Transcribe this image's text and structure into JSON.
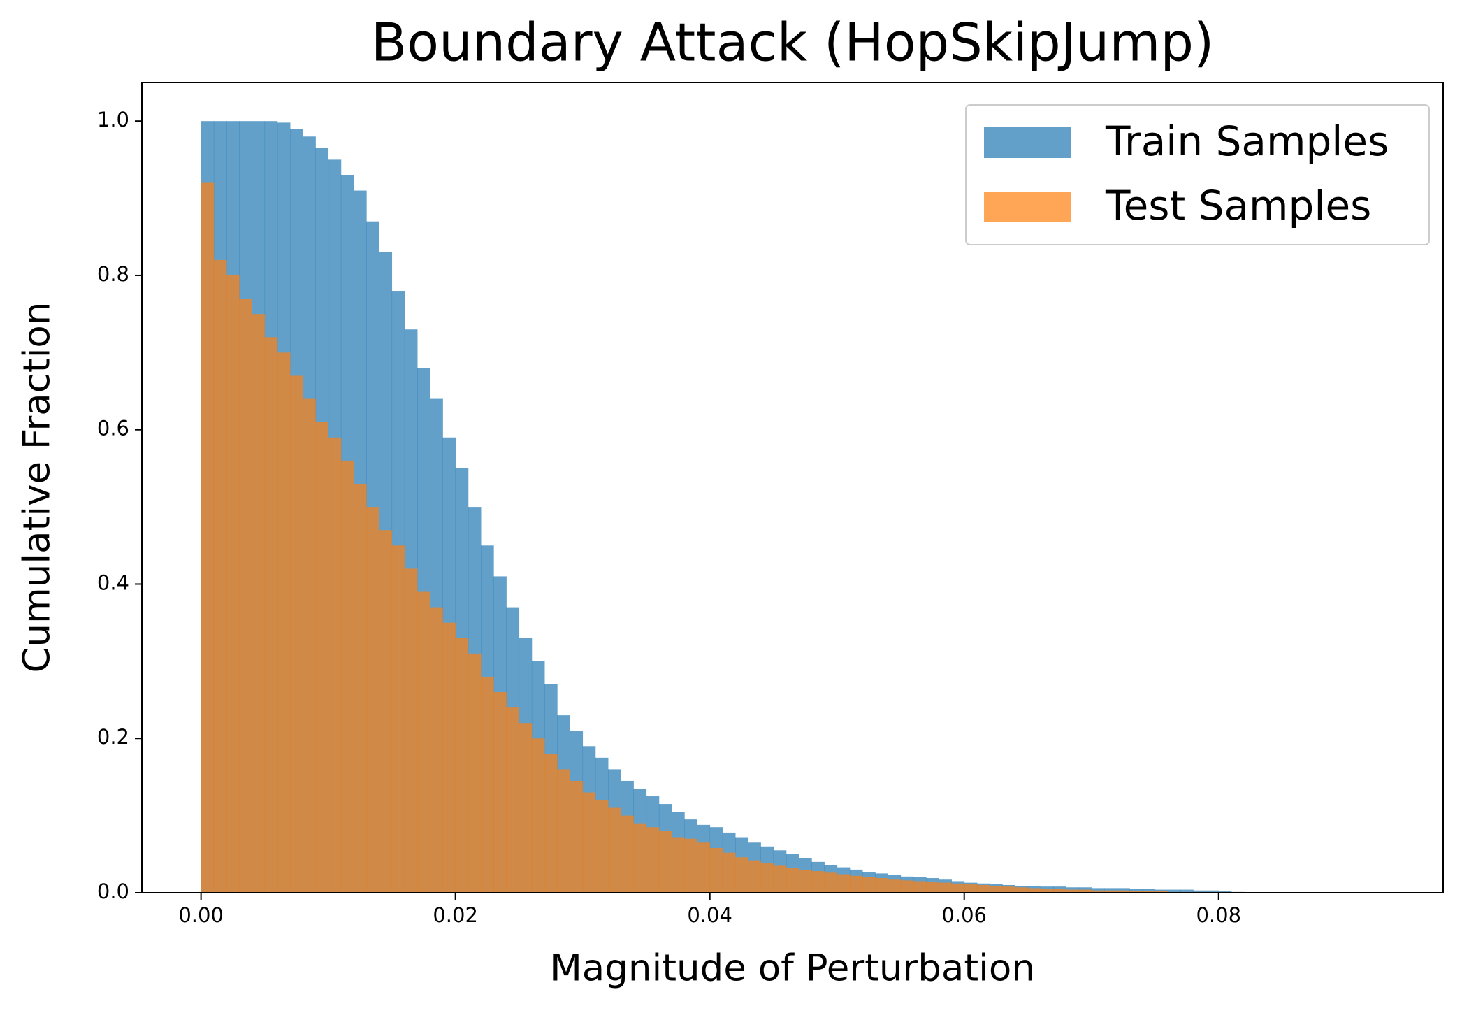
{
  "chart_data": {
    "type": "histogram",
    "title": "Boundary Attack (HopSkipJump)",
    "x_label": "Magnitude of Perturbation",
    "y_label": "Cumulative Fraction",
    "bins": [
      0,
      0.001,
      0.002,
      0.003,
      0.004,
      0.005,
      0.006,
      0.007,
      0.008,
      0.009,
      0.01,
      0.011,
      0.012,
      0.013,
      0.014,
      0.015,
      0.016,
      0.017,
      0.018,
      0.019,
      0.02,
      0.021,
      0.022,
      0.023,
      0.024,
      0.025,
      0.026,
      0.027,
      0.028,
      0.029,
      0.03,
      0.031,
      0.032,
      0.033,
      0.034,
      0.035,
      0.036,
      0.037,
      0.038,
      0.039,
      0.04,
      0.041,
      0.042,
      0.043,
      0.044,
      0.045,
      0.046,
      0.047,
      0.048,
      0.049,
      0.05,
      0.051,
      0.052,
      0.053,
      0.054,
      0.055,
      0.056,
      0.057,
      0.058,
      0.059,
      0.06,
      0.061,
      0.062,
      0.063,
      0.064,
      0.065,
      0.066,
      0.067,
      0.068,
      0.069,
      0.07,
      0.071,
      0.072,
      0.073,
      0.074,
      0.075,
      0.076,
      0.077,
      0.078,
      0.079,
      0.08,
      0.081,
      0.082,
      0.083,
      0.084,
      0.085,
      0.086,
      0.087,
      0.088,
      0.089,
      0.09,
      0.091,
      0.092,
      0.093
    ],
    "series": [
      {
        "name": "Train Samples",
        "color": "#1f77b4",
        "values": [
          1.0,
          1.0,
          1.0,
          1.0,
          1.0,
          1.0,
          0.998,
          0.99,
          0.98,
          0.965,
          0.95,
          0.93,
          0.91,
          0.87,
          0.83,
          0.78,
          0.73,
          0.68,
          0.64,
          0.59,
          0.55,
          0.5,
          0.45,
          0.41,
          0.37,
          0.33,
          0.3,
          0.27,
          0.23,
          0.21,
          0.19,
          0.175,
          0.16,
          0.145,
          0.135,
          0.125,
          0.115,
          0.105,
          0.095,
          0.088,
          0.085,
          0.078,
          0.072,
          0.065,
          0.06,
          0.055,
          0.05,
          0.045,
          0.04,
          0.036,
          0.033,
          0.03,
          0.027,
          0.025,
          0.023,
          0.021,
          0.02,
          0.019,
          0.017,
          0.015,
          0.013,
          0.012,
          0.011,
          0.01,
          0.009,
          0.009,
          0.008,
          0.008,
          0.007,
          0.007,
          0.006,
          0.006,
          0.006,
          0.005,
          0.005,
          0.004,
          0.004,
          0.004,
          0.003,
          0.003,
          0.002,
          0.001,
          0,
          0,
          0,
          0,
          0,
          0,
          0,
          0,
          0,
          0,
          0
        ]
      },
      {
        "name": "Test Samples",
        "color": "#ff7f0e",
        "values": [
          0.92,
          0.82,
          0.8,
          0.77,
          0.75,
          0.72,
          0.7,
          0.67,
          0.64,
          0.61,
          0.59,
          0.56,
          0.53,
          0.5,
          0.47,
          0.45,
          0.42,
          0.39,
          0.37,
          0.35,
          0.33,
          0.31,
          0.28,
          0.26,
          0.24,
          0.22,
          0.2,
          0.18,
          0.16,
          0.145,
          0.13,
          0.12,
          0.11,
          0.1,
          0.09,
          0.085,
          0.08,
          0.072,
          0.07,
          0.065,
          0.058,
          0.052,
          0.046,
          0.042,
          0.038,
          0.035,
          0.032,
          0.03,
          0.028,
          0.026,
          0.024,
          0.022,
          0.02,
          0.019,
          0.017,
          0.016,
          0.015,
          0.014,
          0.013,
          0.012,
          0.011,
          0.01,
          0.009,
          0.008,
          0.007,
          0.006,
          0.005,
          0.005,
          0.004,
          0.004,
          0.003,
          0.003,
          0.003,
          0.002,
          0.002,
          0.002,
          0.001,
          0.001,
          0.001,
          0.001,
          0.001,
          0.001,
          0,
          0,
          0,
          0,
          0,
          0,
          0,
          0,
          0,
          0,
          0
        ]
      }
    ],
    "xlim": [
      -0.00465,
      0.09765
    ],
    "ylim": [
      0,
      1.05
    ],
    "xticks": [
      {
        "value": 0,
        "label": "0.00"
      },
      {
        "value": 0.02,
        "label": "0.02"
      },
      {
        "value": 0.04,
        "label": "0.04"
      },
      {
        "value": 0.06,
        "label": "0.06"
      },
      {
        "value": 0.08,
        "label": "0.08"
      }
    ],
    "yticks": [
      {
        "value": 0,
        "label": "0.0"
      },
      0.2,
      0.4,
      0.6,
      0.8,
      {
        "value": 1,
        "label": "1.0"
      }
    ],
    "grid": false,
    "legend": "upper right"
  }
}
